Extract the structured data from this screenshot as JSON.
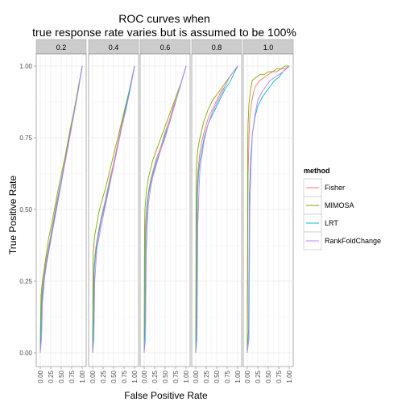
{
  "chart_data": {
    "type": "line",
    "title": "ROC curves when\ntrue response rate varies but is assumed to be 100%",
    "title_lines": [
      "ROC curves when",
      "true response rate varies but is assumed to be 100%"
    ],
    "xlabel": "False Positive Rate",
    "ylabel": "True Positive Rate",
    "xlim": [
      0,
      1
    ],
    "ylim": [
      0,
      1
    ],
    "x_ticks": [
      "0.00",
      "0.25",
      "0.50",
      "0.75",
      "1.00"
    ],
    "y_ticks": [
      "0.00",
      "0.25",
      "0.50",
      "0.75",
      "1.00"
    ],
    "grid": true,
    "legend": {
      "title": "method",
      "position": "right",
      "entries": [
        "Fisher",
        "MIMOSA",
        "LRT",
        "RankFoldChange"
      ]
    },
    "colors": {
      "Fisher": "#F8766D",
      "MIMOSA": "#7CAE00",
      "LRT": "#00BFC4",
      "RankFoldChange": "#C77CFF",
      "panel_bg": "#ffffff",
      "strip_bg": "#cccccc",
      "grid_major": "#ebebeb"
    },
    "facets": [
      {
        "label": "0.2",
        "series": [
          {
            "name": "Fisher",
            "x": [
              0,
              0.01,
              0.03,
              0.06,
              0.1,
              0.15,
              0.2,
              0.3,
              0.4,
              0.5,
              0.6,
              0.7,
              0.8,
              0.9,
              1
            ],
            "y": [
              0,
              0.12,
              0.19,
              0.24,
              0.28,
              0.33,
              0.37,
              0.45,
              0.53,
              0.6,
              0.68,
              0.76,
              0.83,
              0.91,
              1
            ]
          },
          {
            "name": "MIMOSA",
            "x": [
              0,
              0.01,
              0.02,
              0.05,
              0.1,
              0.15,
              0.2,
              0.3,
              0.4,
              0.5,
              0.6,
              0.7,
              0.8,
              0.9,
              1
            ],
            "y": [
              0,
              0.14,
              0.2,
              0.25,
              0.3,
              0.35,
              0.4,
              0.47,
              0.55,
              0.62,
              0.69,
              0.77,
              0.84,
              0.92,
              1
            ]
          },
          {
            "name": "LRT",
            "x": [
              0,
              0.02,
              0.04,
              0.07,
              0.1,
              0.15,
              0.2,
              0.3,
              0.4,
              0.5,
              0.6,
              0.7,
              0.8,
              0.9,
              1
            ],
            "y": [
              0,
              0.08,
              0.18,
              0.23,
              0.27,
              0.32,
              0.36,
              0.44,
              0.52,
              0.6,
              0.67,
              0.75,
              0.83,
              0.91,
              1
            ]
          },
          {
            "name": "RankFoldChange",
            "x": [
              0,
              0.03,
              0.05,
              0.08,
              0.1,
              0.15,
              0.2,
              0.3,
              0.4,
              0.5,
              0.6,
              0.7,
              0.8,
              0.9,
              1
            ],
            "y": [
              0,
              0.05,
              0.17,
              0.22,
              0.26,
              0.31,
              0.35,
              0.43,
              0.51,
              0.59,
              0.67,
              0.75,
              0.83,
              0.91,
              1
            ]
          }
        ]
      },
      {
        "label": "0.4",
        "series": [
          {
            "name": "Fisher",
            "x": [
              0,
              0.02,
              0.04,
              0.07,
              0.1,
              0.15,
              0.2,
              0.3,
              0.4,
              0.5,
              0.6,
              0.7,
              0.8,
              0.9,
              1
            ],
            "y": [
              0,
              0.24,
              0.31,
              0.36,
              0.39,
              0.43,
              0.47,
              0.53,
              0.6,
              0.66,
              0.73,
              0.8,
              0.86,
              0.93,
              1
            ]
          },
          {
            "name": "MIMOSA",
            "x": [
              0,
              0.01,
              0.02,
              0.05,
              0.1,
              0.15,
              0.2,
              0.3,
              0.4,
              0.5,
              0.6,
              0.7,
              0.8,
              0.9,
              1
            ],
            "y": [
              0,
              0.3,
              0.36,
              0.41,
              0.45,
              0.49,
              0.52,
              0.57,
              0.63,
              0.69,
              0.75,
              0.81,
              0.87,
              0.93,
              1
            ]
          },
          {
            "name": "LRT",
            "x": [
              0,
              0.02,
              0.04,
              0.07,
              0.1,
              0.15,
              0.2,
              0.3,
              0.4,
              0.5,
              0.6,
              0.7,
              0.8,
              0.9,
              1
            ],
            "y": [
              0,
              0.1,
              0.29,
              0.34,
              0.38,
              0.42,
              0.46,
              0.52,
              0.59,
              0.65,
              0.72,
              0.79,
              0.86,
              0.93,
              1
            ]
          },
          {
            "name": "RankFoldChange",
            "x": [
              0,
              0.03,
              0.05,
              0.08,
              0.1,
              0.15,
              0.2,
              0.3,
              0.4,
              0.5,
              0.6,
              0.7,
              0.8,
              0.9,
              1
            ],
            "y": [
              0,
              0.05,
              0.25,
              0.32,
              0.36,
              0.4,
              0.44,
              0.51,
              0.58,
              0.65,
              0.72,
              0.79,
              0.85,
              0.92,
              1
            ]
          }
        ]
      },
      {
        "label": "0.6",
        "series": [
          {
            "name": "Fisher",
            "x": [
              0,
              0.02,
              0.04,
              0.07,
              0.1,
              0.15,
              0.2,
              0.3,
              0.4,
              0.5,
              0.6,
              0.7,
              0.8,
              0.9,
              1
            ],
            "y": [
              0,
              0.4,
              0.47,
              0.52,
              0.56,
              0.6,
              0.63,
              0.68,
              0.72,
              0.77,
              0.81,
              0.86,
              0.9,
              0.95,
              1
            ]
          },
          {
            "name": "MIMOSA",
            "x": [
              0,
              0.01,
              0.02,
              0.05,
              0.1,
              0.15,
              0.2,
              0.3,
              0.4,
              0.5,
              0.6,
              0.7,
              0.8,
              0.9,
              1
            ],
            "y": [
              0,
              0.43,
              0.5,
              0.56,
              0.61,
              0.64,
              0.67,
              0.71,
              0.75,
              0.79,
              0.83,
              0.87,
              0.91,
              0.95,
              1
            ]
          },
          {
            "name": "LRT",
            "x": [
              0,
              0.02,
              0.04,
              0.07,
              0.1,
              0.15,
              0.2,
              0.3,
              0.4,
              0.5,
              0.6,
              0.7,
              0.8,
              0.9,
              1
            ],
            "y": [
              0,
              0.1,
              0.42,
              0.5,
              0.55,
              0.59,
              0.62,
              0.67,
              0.71,
              0.76,
              0.8,
              0.85,
              0.9,
              0.95,
              1
            ]
          },
          {
            "name": "RankFoldChange",
            "x": [
              0,
              0.03,
              0.05,
              0.08,
              0.1,
              0.15,
              0.2,
              0.3,
              0.4,
              0.5,
              0.6,
              0.7,
              0.8,
              0.9,
              1
            ],
            "y": [
              0,
              0.05,
              0.35,
              0.46,
              0.52,
              0.57,
              0.61,
              0.66,
              0.71,
              0.75,
              0.8,
              0.85,
              0.9,
              0.95,
              1
            ]
          }
        ]
      },
      {
        "label": "0.8",
        "series": [
          {
            "name": "Fisher",
            "x": [
              0,
              0.02,
              0.04,
              0.07,
              0.1,
              0.15,
              0.2,
              0.3,
              0.4,
              0.5,
              0.6,
              0.7,
              0.8,
              0.9,
              1
            ],
            "y": [
              0,
              0.5,
              0.6,
              0.66,
              0.7,
              0.74,
              0.77,
              0.82,
              0.85,
              0.88,
              0.91,
              0.93,
              0.96,
              0.98,
              1
            ]
          },
          {
            "name": "MIMOSA",
            "x": [
              0,
              0.01,
              0.02,
              0.05,
              0.1,
              0.15,
              0.2,
              0.3,
              0.4,
              0.5,
              0.6,
              0.7,
              0.8,
              0.9,
              1
            ],
            "y": [
              0,
              0.55,
              0.65,
              0.71,
              0.75,
              0.78,
              0.81,
              0.85,
              0.88,
              0.9,
              0.92,
              0.94,
              0.96,
              0.98,
              1
            ]
          },
          {
            "name": "LRT",
            "x": [
              0,
              0.02,
              0.04,
              0.07,
              0.1,
              0.15,
              0.2,
              0.3,
              0.4,
              0.5,
              0.6,
              0.7,
              0.8,
              0.9,
              1
            ],
            "y": [
              0,
              0.1,
              0.55,
              0.63,
              0.67,
              0.71,
              0.75,
              0.8,
              0.83,
              0.86,
              0.89,
              0.92,
              0.94,
              0.97,
              1
            ]
          },
          {
            "name": "RankFoldChange",
            "x": [
              0,
              0.03,
              0.05,
              0.08,
              0.1,
              0.15,
              0.2,
              0.3,
              0.4,
              0.5,
              0.6,
              0.7,
              0.8,
              0.9,
              1
            ],
            "y": [
              0,
              0.05,
              0.45,
              0.58,
              0.64,
              0.69,
              0.74,
              0.8,
              0.84,
              0.87,
              0.9,
              0.93,
              0.96,
              0.98,
              1
            ]
          }
        ]
      },
      {
        "label": "1.0",
        "series": [
          {
            "name": "Fisher",
            "x": [
              0,
              0.02,
              0.04,
              0.06,
              0.1,
              0.15,
              0.2,
              0.3,
              0.4,
              0.5,
              0.6,
              0.7,
              0.8,
              0.9,
              1
            ],
            "y": [
              0,
              0.62,
              0.75,
              0.82,
              0.87,
              0.91,
              0.93,
              0.95,
              0.96,
              0.97,
              0.98,
              0.98,
              0.99,
              0.99,
              1
            ]
          },
          {
            "name": "MIMOSA",
            "x": [
              0,
              0.01,
              0.02,
              0.04,
              0.08,
              0.12,
              0.2,
              0.3,
              0.4,
              0.5,
              0.6,
              0.7,
              0.8,
              0.9,
              1
            ],
            "y": [
              0,
              0.7,
              0.8,
              0.87,
              0.92,
              0.95,
              0.96,
              0.97,
              0.97,
              0.98,
              0.98,
              0.99,
              0.99,
              1,
              1
            ]
          },
          {
            "name": "LRT",
            "x": [
              0,
              0.03,
              0.05,
              0.08,
              0.12,
              0.18,
              0.25,
              0.35,
              0.45,
              0.55,
              0.65,
              0.75,
              0.85,
              0.93,
              1
            ],
            "y": [
              0,
              0.08,
              0.55,
              0.68,
              0.76,
              0.82,
              0.86,
              0.89,
              0.91,
              0.93,
              0.95,
              0.96,
              0.98,
              0.99,
              1
            ]
          },
          {
            "name": "RankFoldChange",
            "x": [
              0,
              0.04,
              0.06,
              0.09,
              0.12,
              0.18,
              0.25,
              0.35,
              0.45,
              0.55,
              0.65,
              0.75,
              0.85,
              0.93,
              1
            ],
            "y": [
              0,
              0.05,
              0.5,
              0.66,
              0.76,
              0.83,
              0.88,
              0.91,
              0.93,
              0.95,
              0.96,
              0.97,
              0.98,
              0.99,
              1
            ]
          }
        ]
      }
    ]
  }
}
